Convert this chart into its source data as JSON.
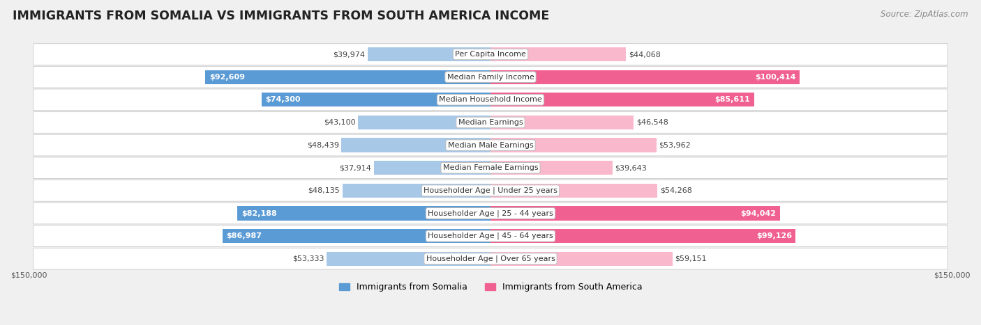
{
  "title": "IMMIGRANTS FROM SOMALIA VS IMMIGRANTS FROM SOUTH AMERICA INCOME",
  "source": "Source: ZipAtlas.com",
  "categories": [
    "Per Capita Income",
    "Median Family Income",
    "Median Household Income",
    "Median Earnings",
    "Median Male Earnings",
    "Median Female Earnings",
    "Householder Age | Under 25 years",
    "Householder Age | 25 - 44 years",
    "Householder Age | 45 - 64 years",
    "Householder Age | Over 65 years"
  ],
  "somalia_values": [
    39974,
    92609,
    74300,
    43100,
    48439,
    37914,
    48135,
    82188,
    86987,
    53333
  ],
  "south_america_values": [
    44068,
    100414,
    85611,
    46548,
    53962,
    39643,
    54268,
    94042,
    99126,
    59151
  ],
  "somalia_labels": [
    "$39,974",
    "$92,609",
    "$74,300",
    "$43,100",
    "$48,439",
    "$37,914",
    "$48,135",
    "$82,188",
    "$86,987",
    "$53,333"
  ],
  "south_america_labels": [
    "$44,068",
    "$100,414",
    "$85,611",
    "$46,548",
    "$53,962",
    "$39,643",
    "$54,268",
    "$94,042",
    "$99,126",
    "$59,151"
  ],
  "somalia_color_light": "#a8c8e8",
  "somalia_color_dark": "#5b9bd5",
  "south_america_color_light": "#f9b8cc",
  "south_america_color_dark": "#f06090",
  "max_value": 150000,
  "background_color": "#f0f0f0",
  "row_bg_light": "#f9f9f9",
  "row_bg_dark": "#eeeeee",
  "label_color_dark": "#444444",
  "label_color_white": "#ffffff",
  "legend_somalia": "Immigrants from Somalia",
  "legend_south_america": "Immigrants from South America",
  "title_fontsize": 12.5,
  "source_fontsize": 8.5,
  "bar_label_fontsize": 8,
  "category_fontsize": 8,
  "axis_label_fontsize": 8,
  "white_label_threshold": 55000,
  "somalia_white_indices": [
    1,
    2,
    7,
    8
  ],
  "sa_white_indices": [
    1,
    2,
    7,
    8
  ]
}
